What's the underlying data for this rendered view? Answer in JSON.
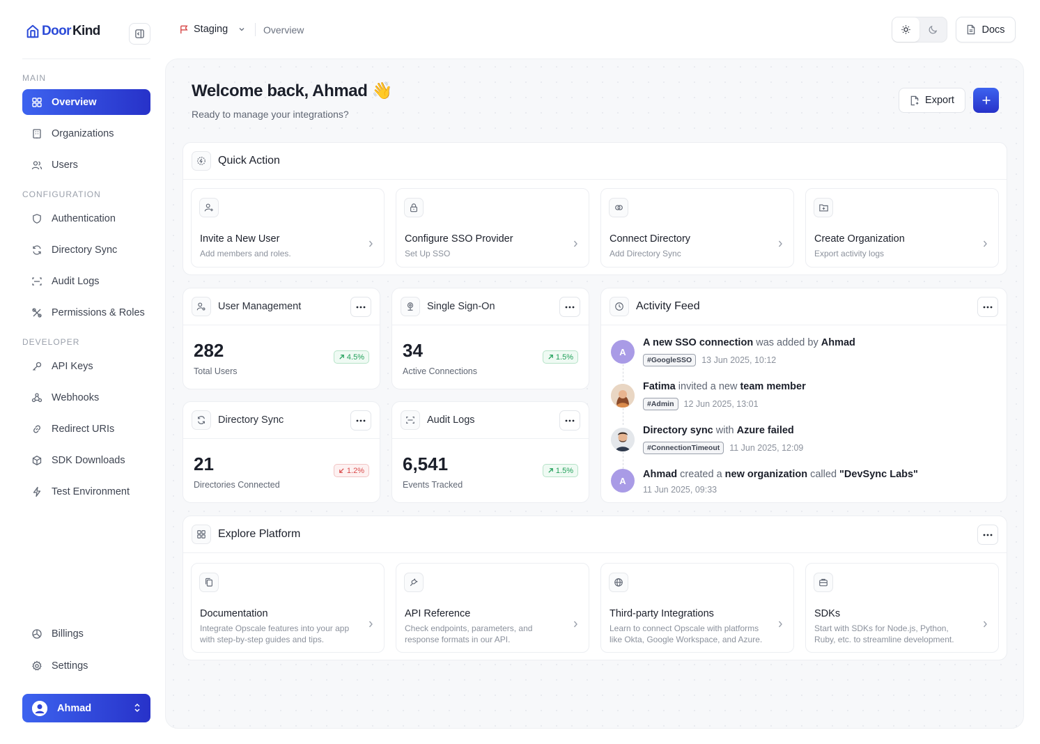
{
  "brand": {
    "logo_part1": "Door",
    "logo_part2": "Kind",
    "accent": "#2c4bd8"
  },
  "sidebar": {
    "sections": {
      "main": "MAIN",
      "configuration": "CONFIGURATION",
      "developer": "DEVELOPER"
    },
    "items": {
      "overview": "Overview",
      "organizations": "Organizations",
      "users": "Users",
      "authentication": "Authentication",
      "directory_sync": "Directory Sync",
      "audit_logs": "Audit Logs",
      "permissions": "Permissions & Roles",
      "api_keys": "API Keys",
      "webhooks": "Webhooks",
      "redirect_uris": "Redirect URIs",
      "sdk_downloads": "SDK Downloads",
      "test_env": "Test Environment",
      "billings": "Billings",
      "settings": "Settings"
    },
    "user": {
      "name": "Ahmad"
    }
  },
  "topbar": {
    "environment": "Staging",
    "breadcrumb": "Overview",
    "docs_label": "Docs"
  },
  "header": {
    "welcome": "Welcome back, Ahmad",
    "wave": "👋",
    "subtitle": "Ready to manage your integrations?",
    "export_label": "Export"
  },
  "quick_action": {
    "title": "Quick Action",
    "tiles": [
      {
        "title": "Invite a New User",
        "desc": "Add members and roles."
      },
      {
        "title": "Configure SSO Provider",
        "desc": "Set Up SSO"
      },
      {
        "title": "Connect Directory",
        "desc": "Add Directory Sync"
      },
      {
        "title": "Create Organization",
        "desc": "Export activity logs"
      }
    ]
  },
  "stats": {
    "user_mgmt": {
      "title": "User Management",
      "value": "282",
      "label": "Total Users",
      "change": "4.5%"
    },
    "sso": {
      "title": "Single Sign-On",
      "value": "34",
      "label": "Active Connections",
      "change": "1.5%"
    },
    "dir_sync": {
      "title": "Directory Sync",
      "value": "21",
      "label": "Directories Connected",
      "change": "1.2%"
    },
    "audit": {
      "title": "Audit Logs",
      "value": "6,541",
      "label": "Events Tracked",
      "change": "1.5%"
    }
  },
  "activity": {
    "title": "Activity Feed",
    "items": [
      {
        "avatar": "A",
        "p1": "A new SSO connection",
        "p2": " was added by ",
        "p3": "Ahmad",
        "tag": "#GoogleSSO",
        "time": "13 Jun 2025, 10:12"
      },
      {
        "p1": "Fatima",
        "p2": " invited a new ",
        "p3": "team member",
        "tag": "#Admin",
        "time": "12 Jun 2025, 13:01"
      },
      {
        "p1": "Directory sync",
        "p2": " with ",
        "p3": "Azure failed",
        "tag": "#ConnectionTimeout",
        "time": "11 Jun 2025, 12:09"
      },
      {
        "avatar": "A",
        "p1": "Ahmad",
        "p2": " created a ",
        "p3": "new organization",
        "p4": " called ",
        "p5": "\"DevSync Labs\"",
        "time": "11 Jun 2025, 09:33"
      }
    ]
  },
  "explore": {
    "title": "Explore Platform",
    "tiles": [
      {
        "title": "Documentation",
        "desc1": "Integrate Opscale features into your app",
        "desc2": "with step-by-step guides and tips."
      },
      {
        "title": "API Reference",
        "desc1": "Check endpoints, parameters, and",
        "desc2": "response formats in our API."
      },
      {
        "title": "Third-party Integrations",
        "desc1": "Learn to connect Opscale with platforms",
        "desc2": "like Okta, Google Workspace, and Azure."
      },
      {
        "title": "SDKs",
        "desc1": "Start with SDKs for Node.js, Python,",
        "desc2": "Ruby, etc. to streamline development."
      }
    ]
  }
}
